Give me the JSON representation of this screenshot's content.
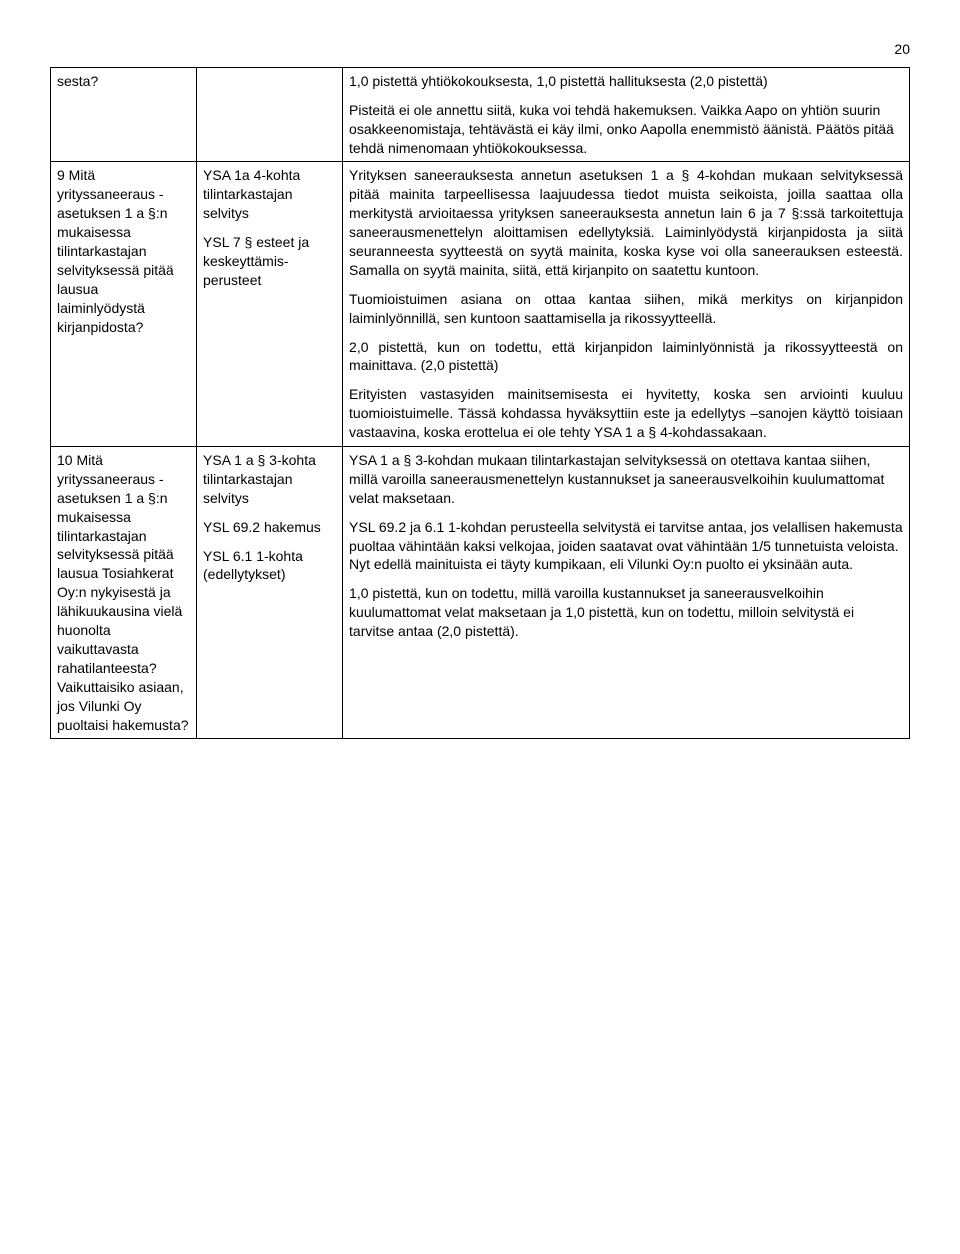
{
  "page_number": "20",
  "table": {
    "row1": {
      "c1": "sesta?",
      "c2": "",
      "c3_p1": "1,0 pistettä yhtiökokouksesta, 1,0 pistettä hallituksesta (2,0 pistettä)",
      "c3_p2": "Pisteitä ei ole annettu siitä, kuka voi tehdä hakemuksen. Vaikka Aapo on yhtiön suurin osakkeenomistaja, tehtävästä ei käy ilmi, onko Aapolla enemmistö äänistä. Päätös pitää tehdä nimenomaan yhtiökokouksessa."
    },
    "row2": {
      "c1": "9 Mitä yrityssaneeraus -asetuksen 1 a §:n mukaisessa tilintarkastajan selvityksessä pitää lausua laiminlyödystä kirjanpidosta?",
      "c2_p1": "YSA 1a 4-kohta tilintarkastajan selvitys",
      "c2_p2": "YSL 7 § esteet ja keskeyttämis-perusteet",
      "c3_p1": "Yrityksen saneerauksesta annetun asetuksen 1 a § 4-kohdan mukaan selvityksessä pitää mainita tarpeellisessa laajuudessa tiedot muista seikoista, joilla saattaa olla merkitystä arvioitaessa yrityksen saneerauksesta annetun lain 6 ja 7 §:ssä tarkoitettuja saneerausmenettelyn aloittamisen edellytyksiä. Laiminlyödystä kirjanpidosta ja siitä seuranneesta syytteestä on syytä mainita, koska kyse voi olla saneerauksen esteestä. Samalla on syytä mainita, siitä, että kirjanpito on saatettu kuntoon.",
      "c3_p2": "Tuomioistuimen asiana on ottaa kantaa siihen, mikä merkitys on kirjanpidon laiminlyönnillä, sen kuntoon saattamisella ja rikossyytteellä.",
      "c3_p3": "2,0 pistettä, kun on todettu, että kirjanpidon laiminlyönnistä ja rikossyytteestä on mainittava. (2,0 pistettä)",
      "c3_p4": "Erityisten vastasyiden mainitsemisesta ei hyvitetty, koska sen arviointi kuuluu tuomioistuimelle. Tässä kohdassa hyväksyttiin este ja edellytys –sanojen käyttö toisiaan vastaavina, koska erottelua ei ole tehty YSA 1 a § 4-kohdassakaan."
    },
    "row3": {
      "c1": "10 Mitä yrityssaneeraus -asetuksen 1 a §:n mukaisessa tilintarkastajan selvityksessä pitää lausua Tosiahkerat Oy:n nykyisestä ja lähikuukausina vielä huonolta vaikuttavasta rahatilanteesta? Vaikuttaisiko asiaan, jos Vilunki Oy puoltaisi hakemusta?",
      "c2_p1": "YSA 1 a § 3-kohta tilintarkastajan selvitys",
      "c2_p2": "YSL 69.2 hakemus",
      "c2_p3": "YSL 6.1 1-kohta (edellytykset)",
      "c3_p1": "YSA 1 a § 3-kohdan mukaan tilintarkastajan selvityksessä on otettava kantaa siihen, millä varoilla saneerausmenettelyn kustannukset ja saneerausvelkoihin kuulumattomat velat maksetaan.",
      "c3_p2": "YSL 69.2 ja 6.1 1-kohdan perusteella selvitystä ei tarvitse antaa, jos velallisen hakemusta puoltaa vähintään kaksi velkojaa, joiden saatavat ovat vähintään 1/5 tunnetuista veloista. Nyt edellä mainituista ei täyty kumpikaan, eli Vilunki Oy:n puolto ei yksinään auta.",
      "c3_p3": "1,0 pistettä, kun on todettu, millä varoilla kustannukset ja saneerausvelkoihin kuulumattomat velat maksetaan ja 1,0 pistettä, kun on todettu, milloin selvitystä ei tarvitse antaa (2,0 pistettä)."
    }
  }
}
